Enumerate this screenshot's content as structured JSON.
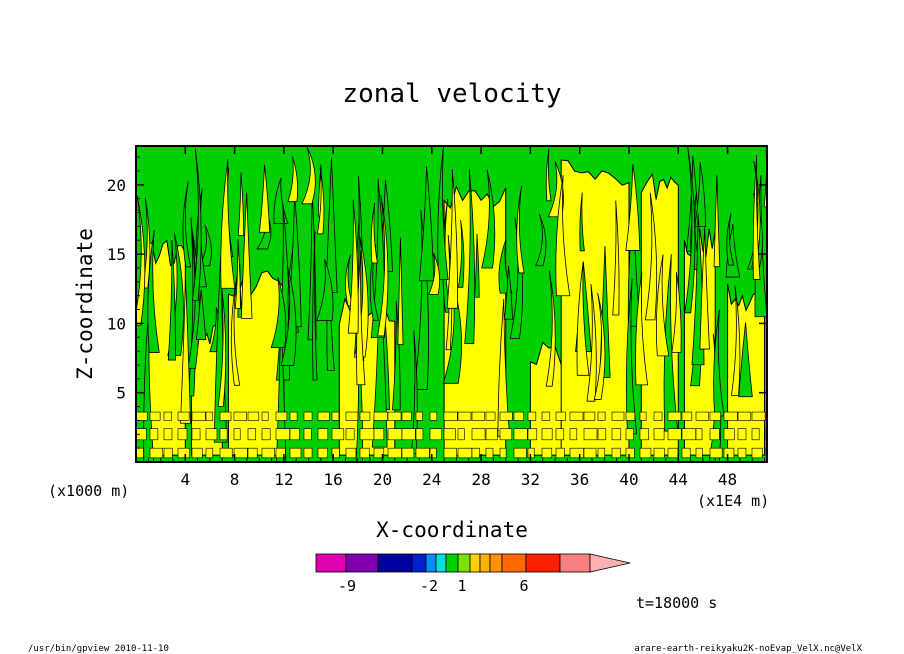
{
  "chart_data": {
    "type": "heatmap",
    "title": "zonal velocity",
    "xlabel": "X-coordinate",
    "ylabel": "Z-coordinate",
    "x_unit": "(x1E4 m)",
    "y_unit": "(x1000 m)",
    "xlim": [
      0,
      51.2
    ],
    "ylim": [
      0,
      22.8
    ],
    "x_ticks": [
      "4",
      "8",
      "12",
      "16",
      "20",
      "24",
      "28",
      "32",
      "36",
      "40",
      "44",
      "48"
    ],
    "y_ticks": [
      "5",
      "10",
      "15",
      "20"
    ],
    "colorbar": {
      "levels": [
        "-9",
        "-2",
        "1",
        "6"
      ],
      "colors": [
        "#e000b0",
        "#8000b0",
        "#0000a0",
        "#0020d0",
        "#0090ff",
        "#00e0e0",
        "#00d000",
        "#80e000",
        "#ffd000",
        "#ffb000",
        "#ff9000",
        "#ff6800",
        "#ff2000",
        "#f88080",
        "#ffb0b0"
      ]
    },
    "regions": {
      "fill_colors": [
        "#00d000",
        "#ffff00"
      ],
      "notes": "alternating green (0 to 1 m/s band) and yellow (1 to 3 m/s band) contour regions"
    },
    "time_label": "t=18000 s"
  },
  "footer": {
    "left": "/usr/bin/gpview  2010-11-10",
    "right": "arare-earth-reikyaku2K-noEvap_VelX.nc@VelX"
  }
}
